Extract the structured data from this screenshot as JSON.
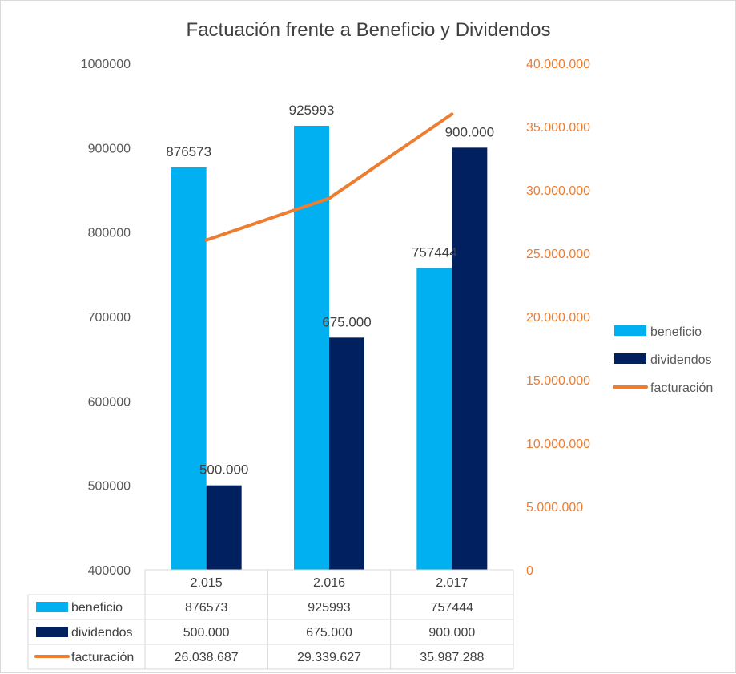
{
  "chart_data": {
    "type": "bar",
    "title": "Factuación frente a Beneficio y Dividendos",
    "categories": [
      "2.015",
      "2.016",
      "2.017"
    ],
    "series": [
      {
        "name": "beneficio",
        "type": "bar",
        "axis": "left",
        "color": "#00b0f0",
        "values": [
          876573,
          925993,
          757444
        ],
        "labels": [
          "876573",
          "925993",
          "757444"
        ]
      },
      {
        "name": "dividendos",
        "type": "bar",
        "axis": "left",
        "color": "#002060",
        "values": [
          500000,
          675000,
          900000
        ],
        "labels": [
          "500.000",
          "675.000",
          "900.000"
        ]
      },
      {
        "name": "facturación",
        "type": "line",
        "axis": "right",
        "color": "#ed7d31",
        "values": [
          26038687,
          29339627,
          35987288
        ],
        "labels": [
          "26.038.687",
          "29.339.627",
          "35.987.288"
        ]
      }
    ],
    "y_left": {
      "ylim": [
        400000,
        1000000
      ],
      "ticks": [
        "1000000",
        "900000",
        "800000",
        "700000",
        "600000",
        "500000",
        "400000"
      ]
    },
    "y_right": {
      "ylim": [
        0,
        40000000
      ],
      "ticks": [
        "40.000.000",
        "35.000.000",
        "30.000.000",
        "25.000.000",
        "20.000.000",
        "15.000.000",
        "10.000.000",
        "5.000.000",
        "0"
      ],
      "color": "#ed7d31"
    },
    "legend": "right",
    "data_table": true,
    "grid": false
  }
}
